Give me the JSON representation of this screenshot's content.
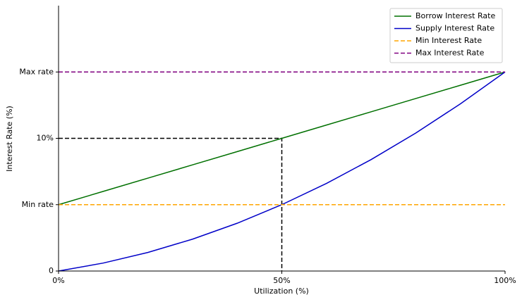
{
  "chart_data": {
    "type": "line",
    "xlabel": "Utilization (%)",
    "ylabel": "Interest Rate (%)",
    "xlim": [
      0,
      100
    ],
    "ylim": [
      0,
      20
    ],
    "xticks": [
      {
        "value": 0,
        "label": "0%"
      },
      {
        "value": 50,
        "label": "50%"
      },
      {
        "value": 100,
        "label": "100%"
      }
    ],
    "yticks": [
      0,
      {
        "value": 5,
        "label": "Min rate"
      },
      {
        "value": 10,
        "label": "10%"
      },
      {
        "value": 15,
        "label": "Max rate"
      }
    ],
    "legend": "upper right",
    "series": [
      {
        "name": "Borrow Interest Rate",
        "color": "#007000",
        "dashed": false,
        "x": [
          0,
          10,
          20,
          30,
          40,
          50,
          60,
          70,
          80,
          90,
          100
        ],
        "values": [
          5,
          6,
          7,
          8,
          9,
          10,
          11,
          12,
          13,
          14,
          15
        ]
      },
      {
        "name": "Supply Interest Rate",
        "color": "#0000c8",
        "dashed": false,
        "x": [
          0,
          10,
          20,
          30,
          40,
          50,
          60,
          70,
          80,
          90,
          100
        ],
        "values": [
          0,
          0.6,
          1.4,
          2.4,
          3.6,
          5,
          6.6,
          8.4,
          10.4,
          12.6,
          15
        ]
      },
      {
        "name": "Min Interest Rate",
        "color": "#ffa500",
        "dashed": true,
        "x": [
          0,
          100
        ],
        "values": [
          5,
          5
        ]
      },
      {
        "name": "Max Interest Rate",
        "color": "#800080",
        "dashed": true,
        "x": [
          0,
          100
        ],
        "values": [
          15,
          15
        ]
      }
    ],
    "guides": [
      {
        "color": "#000000",
        "x": [
          0,
          50,
          50
        ],
        "values": [
          10,
          10,
          0
        ]
      }
    ]
  }
}
